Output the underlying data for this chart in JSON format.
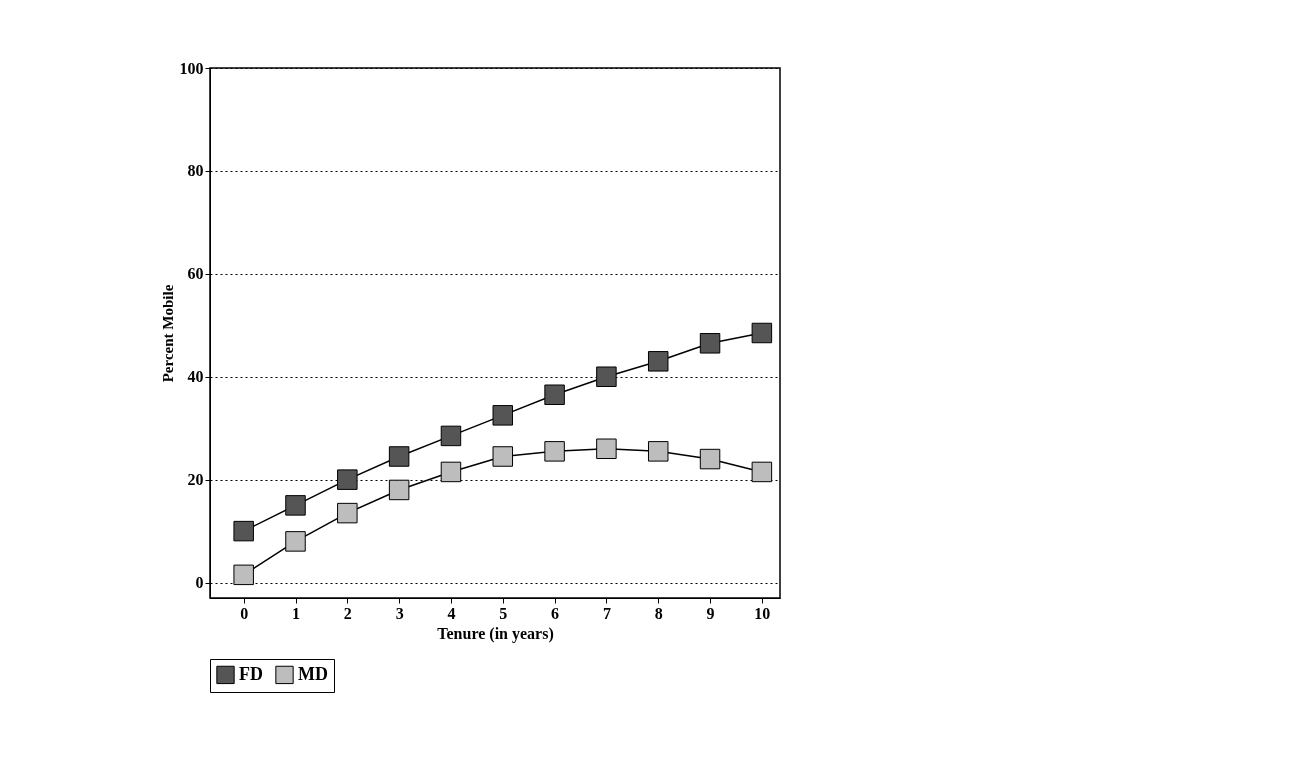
{
  "chart_data": {
    "type": "line",
    "xlabel": "Tenure (in years)",
    "ylabel": "Percent Mobile",
    "x": [
      0,
      1,
      2,
      3,
      4,
      5,
      6,
      7,
      8,
      9,
      10
    ],
    "series": [
      {
        "name": "FD",
        "color": "#555555",
        "values": [
          10,
          15,
          20,
          24.5,
          28.5,
          32.5,
          36.5,
          40,
          43,
          46.5,
          48.5
        ]
      },
      {
        "name": "MD",
        "color": "#bdbdbd",
        "values": [
          1.5,
          8,
          13.5,
          18,
          21.5,
          24.5,
          25.5,
          26,
          25.5,
          24,
          21.5
        ]
      }
    ],
    "xlim": [
      -0.65,
      10.35
    ],
    "xticks": [
      0,
      1,
      2,
      3,
      4,
      5,
      6,
      7,
      8,
      9,
      10
    ],
    "ylim": [
      -3,
      100
    ],
    "yticks": [
      0,
      20,
      40,
      60,
      80,
      100
    ],
    "grid": "y",
    "legend": "bottom",
    "marker": "square",
    "line_style": "solid"
  }
}
